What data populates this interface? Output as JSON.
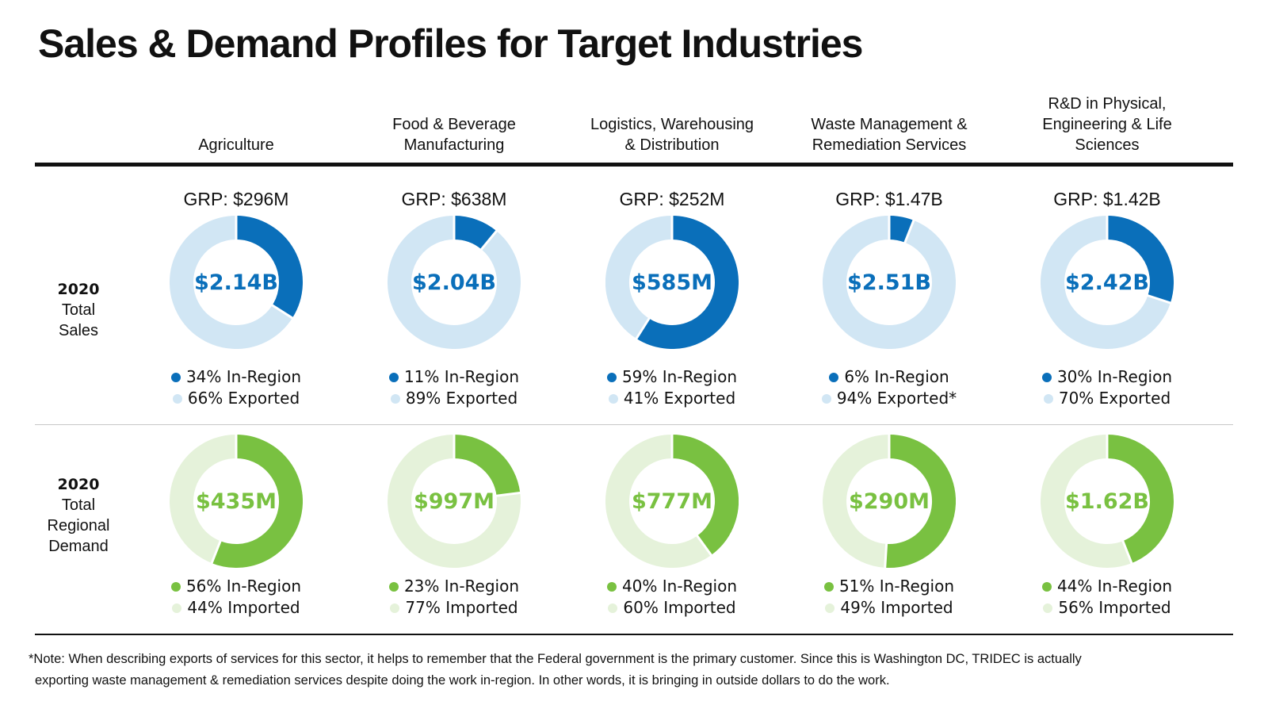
{
  "title": "Sales & Demand Profiles for Target Industries",
  "colors": {
    "sales_in": "#0a6fba",
    "sales_out": "#d1e6f4",
    "demand_in": "#79c141",
    "demand_out": "#e5f2da"
  },
  "row_labels": {
    "sales": {
      "year": "2020",
      "line1": "Total",
      "line2": "Sales",
      "line3": ""
    },
    "demand": {
      "year": "2020",
      "line1": "Total",
      "line2": "Regional",
      "line3": "Demand"
    }
  },
  "chart_data": {
    "type": "pie",
    "categories": [
      "Agriculture",
      "Food & Beverage Manufacturing",
      "Logistics, Warehousing & Distribution",
      "Waste Management & Remediation Services",
      "R&D in Physical, Engineering & Life Sciences"
    ],
    "category_lines": [
      [
        "Agriculture"
      ],
      [
        "Food & Beverage",
        "Manufacturing"
      ],
      [
        "Logistics, Warehousing",
        "& Distribution"
      ],
      [
        "Waste Management &",
        "Remediation Services"
      ],
      [
        "R&D in Physical,",
        "Engineering & Life",
        "Sciences"
      ]
    ],
    "grp": [
      "GRP: $296M",
      "GRP: $638M",
      "GRP: $252M",
      "GRP: $1.47B",
      "GRP: $1.42B"
    ],
    "sales": {
      "totals": [
        "$2.14B",
        "$2.04B",
        "$585M",
        "$2.51B",
        "$2.42B"
      ],
      "in_region_pct": [
        34,
        11,
        59,
        6,
        30
      ],
      "exported_pct": [
        66,
        89,
        41,
        94,
        70
      ],
      "in_labels": [
        "34% In-Region",
        "11% In-Region",
        "59% In-Region",
        "6% In-Region",
        "30% In-Region"
      ],
      "out_labels": [
        "66% Exported",
        "89% Exported",
        "41% Exported",
        "94% Exported*",
        "70% Exported"
      ]
    },
    "demand": {
      "totals": [
        "$435M",
        "$997M",
        "$777M",
        "$290M",
        "$1.62B"
      ],
      "in_region_pct": [
        56,
        23,
        40,
        51,
        44
      ],
      "imported_pct": [
        44,
        77,
        60,
        49,
        56
      ],
      "in_labels": [
        "56% In-Region",
        "23% In-Region",
        "40% In-Region",
        "51% In-Region",
        "44% In-Region"
      ],
      "out_labels": [
        "44% Imported",
        "77% Imported",
        "60% Imported",
        "49% Imported",
        "56% Imported"
      ]
    }
  },
  "note": {
    "line1": "*Note: When describing exports of services for this sector, it helps to remember that the Federal government is the primary customer. Since this is Washington DC, TRIDEC is actually",
    "line2": "exporting waste management & remediation services despite doing the work in-region. In other words, it is bringing in outside dollars to do the work."
  }
}
